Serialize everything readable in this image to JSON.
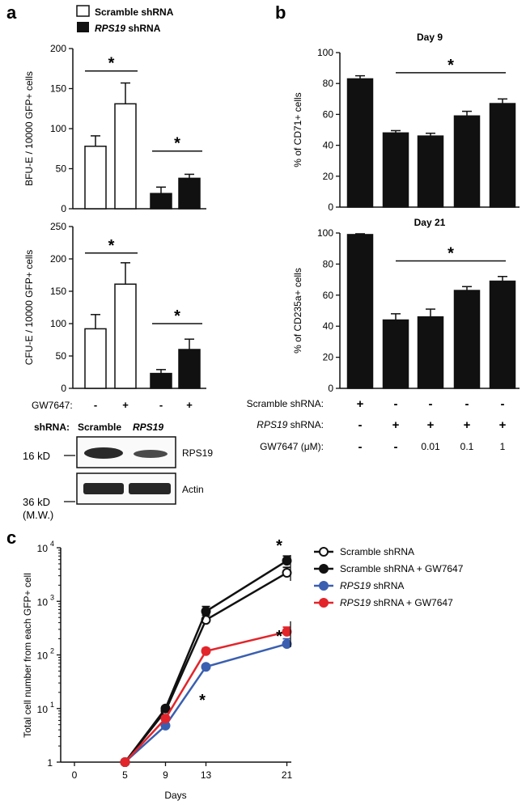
{
  "panel_labels": {
    "a": "a",
    "b": "b",
    "c": "c"
  },
  "colors": {
    "black": "#111111",
    "white": "#ffffff",
    "blue": "#3a5fb0",
    "red": "#e2252b",
    "blot": "#2a2a2a"
  },
  "legend_a": {
    "scramble": "Scramble shRNA",
    "rps19_italic": "RPS19",
    "rps19_suffix": " shRNA"
  },
  "treatment_a": {
    "label": "GW7647:",
    "marks": [
      "-",
      "+",
      "-",
      "+"
    ]
  },
  "western": {
    "header_label": "shRNA:",
    "lane1": "Scramble",
    "lane2": "RPS19",
    "mw1": "16 kD",
    "mw2": "36 kD",
    "mw_note": "(M.W.)",
    "band1": "RPS19",
    "band2": "Actin"
  },
  "treatment_b": {
    "rows": [
      {
        "label": "Scramble shRNA:",
        "marks": [
          "+",
          "-",
          "-",
          "-",
          "-"
        ]
      },
      {
        "label_italic": "RPS19",
        "label_suffix": " shRNA:",
        "marks": [
          "-",
          "+",
          "+",
          "+",
          "+"
        ]
      },
      {
        "label": "GW7647 (μM):",
        "marks": [
          "-",
          "-",
          "0.01",
          "0.1",
          "1"
        ]
      }
    ]
  },
  "chart_data": [
    {
      "id": "a-top",
      "type": "bar",
      "ylabel": "BFU-E / 10000 GFP+ cells",
      "ylim": [
        0,
        200
      ],
      "yticks": [
        "0",
        "50",
        "100",
        "150",
        "200"
      ],
      "categories": [
        "-",
        "+",
        "-",
        "+"
      ],
      "series": [
        {
          "name": "Scramble shRNA",
          "fill": "white",
          "values": [
            78,
            131,
            null,
            null
          ],
          "errors": [
            13,
            26,
            null,
            null
          ]
        },
        {
          "name": "RPS19 shRNA",
          "fill": "black",
          "values": [
            null,
            null,
            19,
            38
          ],
          "errors": [
            null,
            null,
            8,
            5
          ]
        }
      ],
      "annotations": [
        "*",
        "*"
      ]
    },
    {
      "id": "a-bottom",
      "type": "bar",
      "ylabel": "CFU-E / 10000 GFP+ cells",
      "ylim": [
        0,
        250
      ],
      "yticks": [
        "0",
        "50",
        "100",
        "150",
        "200",
        "250"
      ],
      "categories": [
        "-",
        "+",
        "-",
        "+"
      ],
      "series": [
        {
          "name": "Scramble shRNA",
          "fill": "white",
          "values": [
            92,
            161,
            null,
            null
          ],
          "errors": [
            22,
            33,
            null,
            null
          ]
        },
        {
          "name": "RPS19 shRNA",
          "fill": "black",
          "values": [
            null,
            null,
            23,
            60
          ],
          "errors": [
            null,
            null,
            6,
            16
          ]
        }
      ],
      "annotations": [
        "*",
        "*"
      ]
    },
    {
      "id": "b-top",
      "type": "bar",
      "title": "Day 9",
      "ylabel": "% of CD71+ cells",
      "ylim": [
        0,
        100
      ],
      "yticks": [
        "0",
        "20",
        "40",
        "60",
        "80",
        "100"
      ],
      "categories": [
        "Scramble",
        "RPS19",
        "RPS19 + 0.01 μM",
        "RPS19 + 0.1 μM",
        "RPS19 + 1 μM"
      ],
      "values": [
        83,
        48,
        46,
        59,
        67
      ],
      "errors": [
        2,
        1.5,
        1.8,
        3,
        3
      ],
      "annotations": [
        "*"
      ]
    },
    {
      "id": "b-bottom",
      "type": "bar",
      "title": "Day 21",
      "ylabel": "% of CD235a+ cells",
      "ylim": [
        0,
        100
      ],
      "yticks": [
        "0",
        "20",
        "40",
        "60",
        "80",
        "100"
      ],
      "categories": [
        "Scramble",
        "RPS19",
        "RPS19 + 0.01 μM",
        "RPS19 + 0.1 μM",
        "RPS19 + 1 μM"
      ],
      "values": [
        99,
        44,
        46,
        63,
        69
      ],
      "errors": [
        0.5,
        4,
        5,
        2.5,
        3
      ],
      "annotations": [
        "*"
      ]
    },
    {
      "id": "c",
      "type": "line",
      "xlabel": "Days",
      "ylabel": "Total cell number from each GFP+ cell",
      "yscale": "log",
      "ylim": [
        1,
        10000
      ],
      "xticks": [
        "0",
        "5",
        "9",
        "13",
        "21"
      ],
      "yticks": [
        {
          "base": "1",
          "exp": ""
        },
        {
          "base": "10",
          "exp": "1"
        },
        {
          "base": "10",
          "exp": "2"
        },
        {
          "base": "10",
          "exp": "3"
        },
        {
          "base": "10",
          "exp": "4"
        }
      ],
      "x": [
        5,
        9,
        13,
        21
      ],
      "series": [
        {
          "name": "Scramble shRNA",
          "values": [
            1,
            9,
            450,
            3400
          ],
          "err_hi": [
            0,
            1,
            100,
            900
          ],
          "color": "#111111",
          "marker": "open"
        },
        {
          "name": "Scramble shRNA + GW7647",
          "values": [
            1,
            10,
            650,
            5700
          ],
          "err_hi": [
            0,
            1,
            150,
            1300
          ],
          "color": "#111111",
          "marker": "filled"
        },
        {
          "name": "RPS19 shRNA",
          "values": [
            1,
            4.8,
            60,
            160
          ],
          "err_hi": [
            0,
            0.5,
            5,
            40
          ],
          "color": "#3a5fb0",
          "marker": "filled"
        },
        {
          "name": "RPS19 shRNA + GW7647",
          "values": [
            1,
            6.5,
            118,
            270
          ],
          "err_hi": [
            0,
            0.7,
            15,
            60
          ],
          "color": "#e2252b",
          "marker": "filled"
        }
      ],
      "legend": [
        {
          "text": "Scramble shRNA"
        },
        {
          "text": "Scramble shRNA + GW7647"
        },
        {
          "italic": "RPS19",
          "text": " shRNA"
        },
        {
          "italic": "RPS19",
          "text": " shRNA + GW7647"
        }
      ],
      "annotations": [
        "*",
        "*",
        "*"
      ]
    }
  ]
}
